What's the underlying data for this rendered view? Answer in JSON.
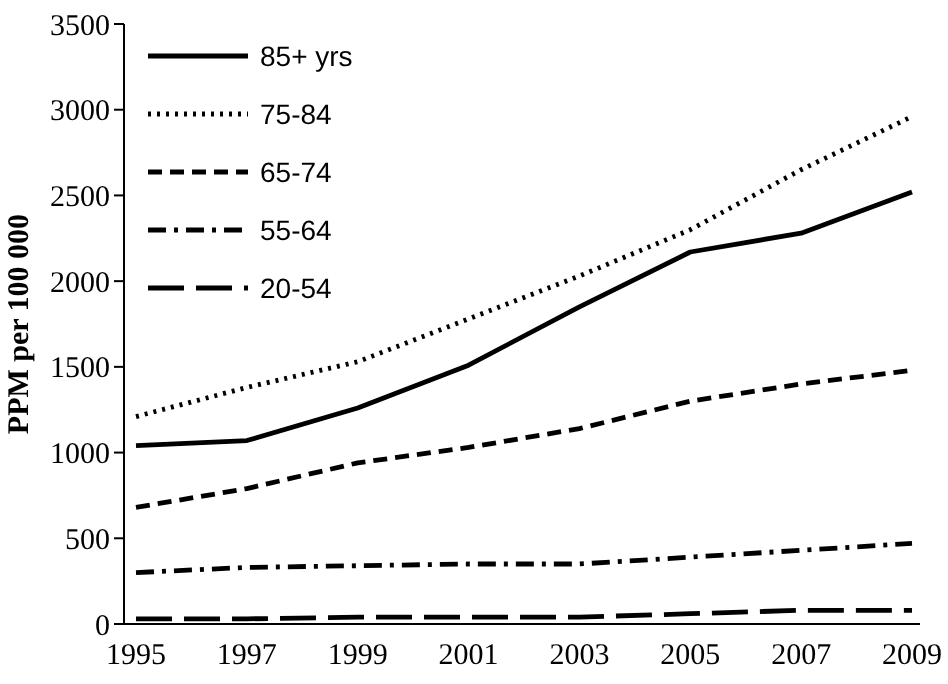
{
  "chart_data": {
    "type": "line",
    "ylabel": "PPM per 100 000",
    "categories": [
      "1995",
      "1997",
      "1999",
      "2001",
      "2003",
      "2005",
      "2007",
      "2009"
    ],
    "ylim": [
      0,
      3500
    ],
    "yticks": [
      0,
      500,
      1000,
      1500,
      2000,
      2500,
      3000,
      3500
    ],
    "legend": "top left",
    "series": [
      {
        "name": "85+ yrs",
        "color": "#000000",
        "line_style": "solid",
        "values": [
          1040,
          1070,
          1260,
          1510,
          1850,
          2170,
          2280,
          2520
        ]
      },
      {
        "name": "75-84",
        "color": "#000000",
        "line_style": "dotted",
        "values": [
          1210,
          1380,
          1530,
          1780,
          2030,
          2300,
          2650,
          2960
        ]
      },
      {
        "name": "65-74",
        "color": "#000000",
        "line_style": "dashed",
        "values": [
          680,
          790,
          940,
          1030,
          1140,
          1300,
          1400,
          1480
        ]
      },
      {
        "name": "55-64",
        "color": "#000000",
        "line_style": "dashdot",
        "values": [
          300,
          330,
          340,
          350,
          350,
          390,
          430,
          470
        ]
      },
      {
        "name": "20-54",
        "color": "#000000",
        "line_style": "longdash",
        "values": [
          30,
          30,
          40,
          40,
          40,
          60,
          80,
          80
        ]
      }
    ]
  }
}
